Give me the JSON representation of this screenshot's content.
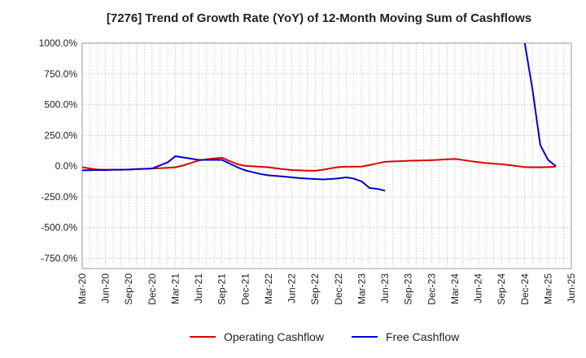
{
  "chart_data": {
    "type": "line",
    "title": "[7276]  Trend of Growth Rate (YoY) of 12-Month Moving Sum of Cashflows",
    "xlabel": "",
    "ylabel": "",
    "ylim": [
      -833,
      1000
    ],
    "y_ticks": [
      1000,
      750,
      500,
      250,
      0,
      -250,
      -500,
      -750
    ],
    "y_tick_labels": [
      "1000.0%",
      "750.0%",
      "500.0%",
      "250.0%",
      "0.0%",
      "-250.0%",
      "-500.0%",
      "-750.0%"
    ],
    "x_tick_labels": [
      "Mar-20",
      "Jun-20",
      "Sep-20",
      "Dec-20",
      "Mar-21",
      "Jun-21",
      "Sep-21",
      "Dec-21",
      "Mar-22",
      "Jun-22",
      "Sep-22",
      "Dec-22",
      "Mar-23",
      "Jun-23",
      "Sep-23",
      "Dec-23",
      "Mar-24",
      "Jun-24",
      "Sep-24",
      "Dec-24",
      "Mar-25",
      "Jun-25"
    ],
    "x_months": [
      "2020-03",
      "2020-04",
      "2020-05",
      "2020-06",
      "2020-07",
      "2020-08",
      "2020-09",
      "2020-10",
      "2020-11",
      "2020-12",
      "2021-01",
      "2021-02",
      "2021-03",
      "2021-04",
      "2021-05",
      "2021-06",
      "2021-07",
      "2021-08",
      "2021-09",
      "2021-10",
      "2021-11",
      "2021-12",
      "2022-01",
      "2022-02",
      "2022-03",
      "2022-04",
      "2022-05",
      "2022-06",
      "2022-07",
      "2022-08",
      "2022-09",
      "2022-10",
      "2022-11",
      "2022-12",
      "2023-01",
      "2023-02",
      "2023-03",
      "2023-04",
      "2023-05",
      "2023-06",
      "2023-07",
      "2023-08",
      "2023-09",
      "2023-10",
      "2023-11",
      "2023-12",
      "2024-01",
      "2024-02",
      "2024-03",
      "2024-04",
      "2024-05",
      "2024-06",
      "2024-07",
      "2024-08",
      "2024-09",
      "2024-10",
      "2024-11",
      "2024-12",
      "2025-01",
      "2025-02",
      "2025-03",
      "2025-04",
      "2025-05",
      "2025-06"
    ],
    "grid": true,
    "legend_position": "bottom-center",
    "series": [
      {
        "name": "Operating Cashflow",
        "color": "#dd0000",
        "values": [
          -10,
          -20,
          -28,
          -30,
          -30,
          -30,
          -28,
          -25,
          -22,
          -20,
          -17,
          -14,
          -10,
          5,
          25,
          45,
          55,
          62,
          68,
          40,
          15,
          2,
          -2,
          -6,
          -10,
          -18,
          -26,
          -32,
          -35,
          -37,
          -38,
          -30,
          -18,
          -8,
          -5,
          -5,
          -4,
          8,
          22,
          35,
          38,
          40,
          43,
          45,
          46,
          48,
          51,
          55,
          58,
          50,
          40,
          32,
          25,
          20,
          15,
          8,
          0,
          -8,
          -10,
          -10,
          -8,
          -5,
          null,
          null
        ]
      },
      {
        "name": "Free Cashflow",
        "color": "#0000cc",
        "values": [
          -35,
          -33,
          -32,
          -32,
          -30,
          -30,
          -28,
          -25,
          -22,
          -20,
          5,
          30,
          80,
          70,
          60,
          50,
          50,
          50,
          50,
          20,
          -10,
          -35,
          -50,
          -65,
          -75,
          -80,
          -85,
          -92,
          -98,
          -102,
          -105,
          -108,
          -105,
          -100,
          -92,
          -102,
          -125,
          -178,
          -185,
          -200,
          null,
          null,
          null,
          null,
          null,
          null,
          null,
          null,
          null,
          null,
          null,
          null,
          null,
          null,
          null,
          null,
          null,
          1000,
          620,
          170,
          50,
          0,
          null,
          null
        ]
      }
    ]
  }
}
